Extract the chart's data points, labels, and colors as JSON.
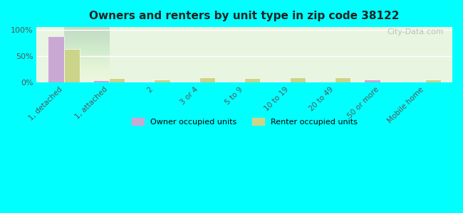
{
  "title": "Owners and renters by unit type in zip code 38122",
  "categories": [
    "1, detached",
    "1, attached",
    "2",
    "3 or 4",
    "5 to 9",
    "10 to 19",
    "20 to 49",
    "50 or more",
    "Mobile home"
  ],
  "owner_values": [
    88,
    4,
    0.5,
    0,
    0,
    0.5,
    0,
    5,
    1.5
  ],
  "renter_values": [
    63,
    8,
    5,
    9,
    8,
    9,
    9,
    0,
    5
  ],
  "owner_color": "#c9a8d4",
  "renter_color": "#ccd48a",
  "background_color": "#00ffff",
  "plot_bg_gradient_top": "#e8f5e0",
  "plot_bg_gradient_bottom": "#f8ffe8",
  "ylabel_ticks": [
    "0%",
    "50%",
    "100%"
  ],
  "ytick_values": [
    0,
    50,
    100
  ],
  "ylim": [
    0,
    105
  ],
  "watermark": "City-Data.com",
  "legend_owner": "Owner occupied units",
  "legend_renter": "Renter occupied units",
  "bar_width": 0.35
}
